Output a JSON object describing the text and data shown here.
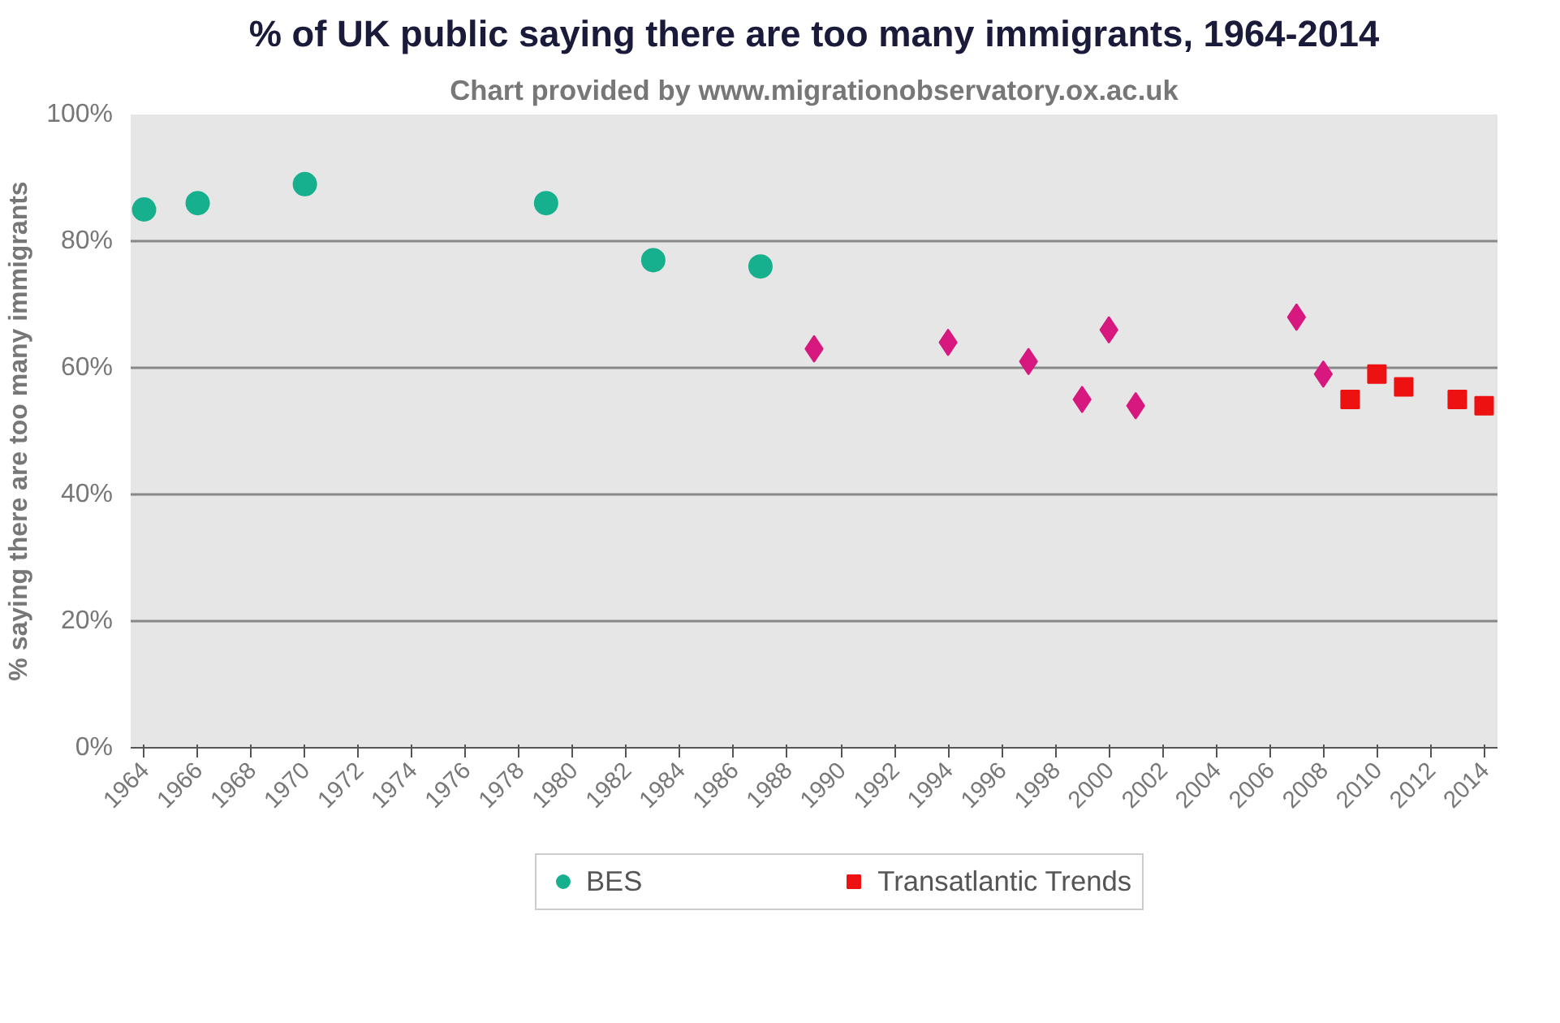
{
  "chart_data": {
    "type": "scatter",
    "title": "% of UK public saying there are too many immigrants, 1964-2014",
    "subtitle": "Chart provided by www.migrationobservatory.ox.ac.uk",
    "ylabel": "% saying there are too many immigrants",
    "xlim": [
      1963.5,
      2014.5
    ],
    "xticks": [
      {
        "value": 1964,
        "label": "1964"
      },
      {
        "value": 1966,
        "label": "1966"
      },
      {
        "value": 1968,
        "label": "1968"
      },
      {
        "value": 1970,
        "label": "1970"
      },
      {
        "value": 1972,
        "label": "1972"
      },
      {
        "value": 1974,
        "label": "1974"
      },
      {
        "value": 1976,
        "label": "1976"
      },
      {
        "value": 1978,
        "label": "1978"
      },
      {
        "value": 1980,
        "label": "1980"
      },
      {
        "value": 1982,
        "label": "1982"
      },
      {
        "value": 1984,
        "label": "1984"
      },
      {
        "value": 1986,
        "label": "1986"
      },
      {
        "value": 1988,
        "label": "1988"
      },
      {
        "value": 1990,
        "label": "1990"
      },
      {
        "value": 1992,
        "label": "1992"
      },
      {
        "value": 1994,
        "label": "1994"
      },
      {
        "value": 1996,
        "label": "1996"
      },
      {
        "value": 1998,
        "label": "1998"
      },
      {
        "value": 2000,
        "label": "2000"
      },
      {
        "value": 2002,
        "label": "2002"
      },
      {
        "value": 2004,
        "label": "2004"
      },
      {
        "value": 2006,
        "label": "2006"
      },
      {
        "value": 2008,
        "label": "2008"
      },
      {
        "value": 2010,
        "label": "2010"
      },
      {
        "value": 2012,
        "label": "2012"
      },
      {
        "value": 2014,
        "label": "2014"
      }
    ],
    "ylim": [
      0,
      100
    ],
    "yticks": [
      {
        "value": 0,
        "label": "0%"
      },
      {
        "value": 20,
        "label": "20%"
      },
      {
        "value": 40,
        "label": "40%"
      },
      {
        "value": 60,
        "label": "60%"
      },
      {
        "value": 80,
        "label": "80%"
      },
      {
        "value": 100,
        "label": "100%"
      }
    ],
    "grid": "y",
    "legend": "bottom",
    "series": [
      {
        "name": "BES",
        "color": "#17b08f",
        "marker": "circle",
        "x": [
          1964,
          1966,
          1970,
          1979,
          1983,
          1987
        ],
        "values": [
          85,
          86,
          89,
          86,
          77,
          76
        ]
      },
      {
        "color": "#d6187f",
        "marker": "diamond",
        "x": [
          1989,
          1994,
          1997,
          1999,
          2000,
          2001,
          2007,
          2008
        ],
        "values": [
          63,
          64,
          61,
          55,
          66,
          54,
          68,
          59
        ]
      },
      {
        "name": "Transatlantic Trends",
        "color": "#ee1111",
        "marker": "square",
        "x": [
          2009,
          2010,
          2011,
          2013,
          2014
        ],
        "values": [
          55,
          59,
          57,
          55,
          54
        ]
      }
    ]
  }
}
